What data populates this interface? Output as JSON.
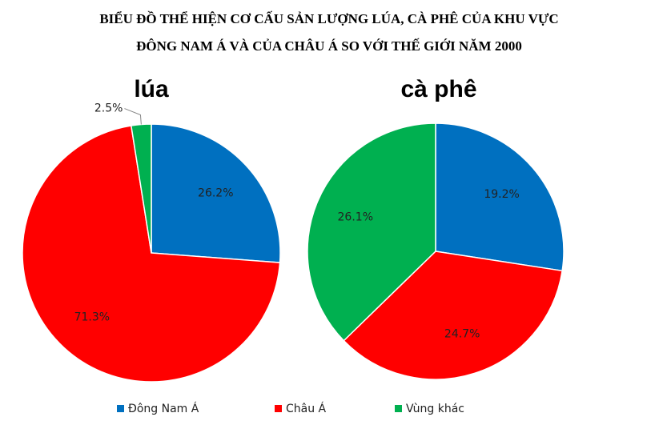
{
  "title": [
    "BIỂU ĐỒ THỂ HIỆN CƠ CẤU SẢN LƯỢNG LÚA, CÀ PHÊ CỦA KHU VỰC",
    "ĐÔNG NAM Á VÀ CỦA CHÂU Á SO VỚI THẾ GIỚI NĂM 2000"
  ],
  "chart_data": [
    {
      "type": "pie",
      "title": "lúa",
      "categories": [
        "Đông Nam Á",
        "Châu Á",
        "Vùng khác"
      ],
      "values": [
        26.2,
        71.3,
        2.5
      ],
      "value_labels": [
        "26.2%",
        "71.3%",
        "2.5%"
      ],
      "colors": [
        "#0070c0",
        "#ff0000",
        "#00b050"
      ]
    },
    {
      "type": "pie",
      "title": "cà phê",
      "categories": [
        "Đông Nam Á",
        "Châu Á",
        "Vùng khác"
      ],
      "values": [
        19.2,
        24.7,
        26.1
      ],
      "value_labels": [
        "19.2%",
        "24.7%",
        "26.1%"
      ],
      "colors": [
        "#0070c0",
        "#ff0000",
        "#00b050"
      ]
    }
  ]
}
